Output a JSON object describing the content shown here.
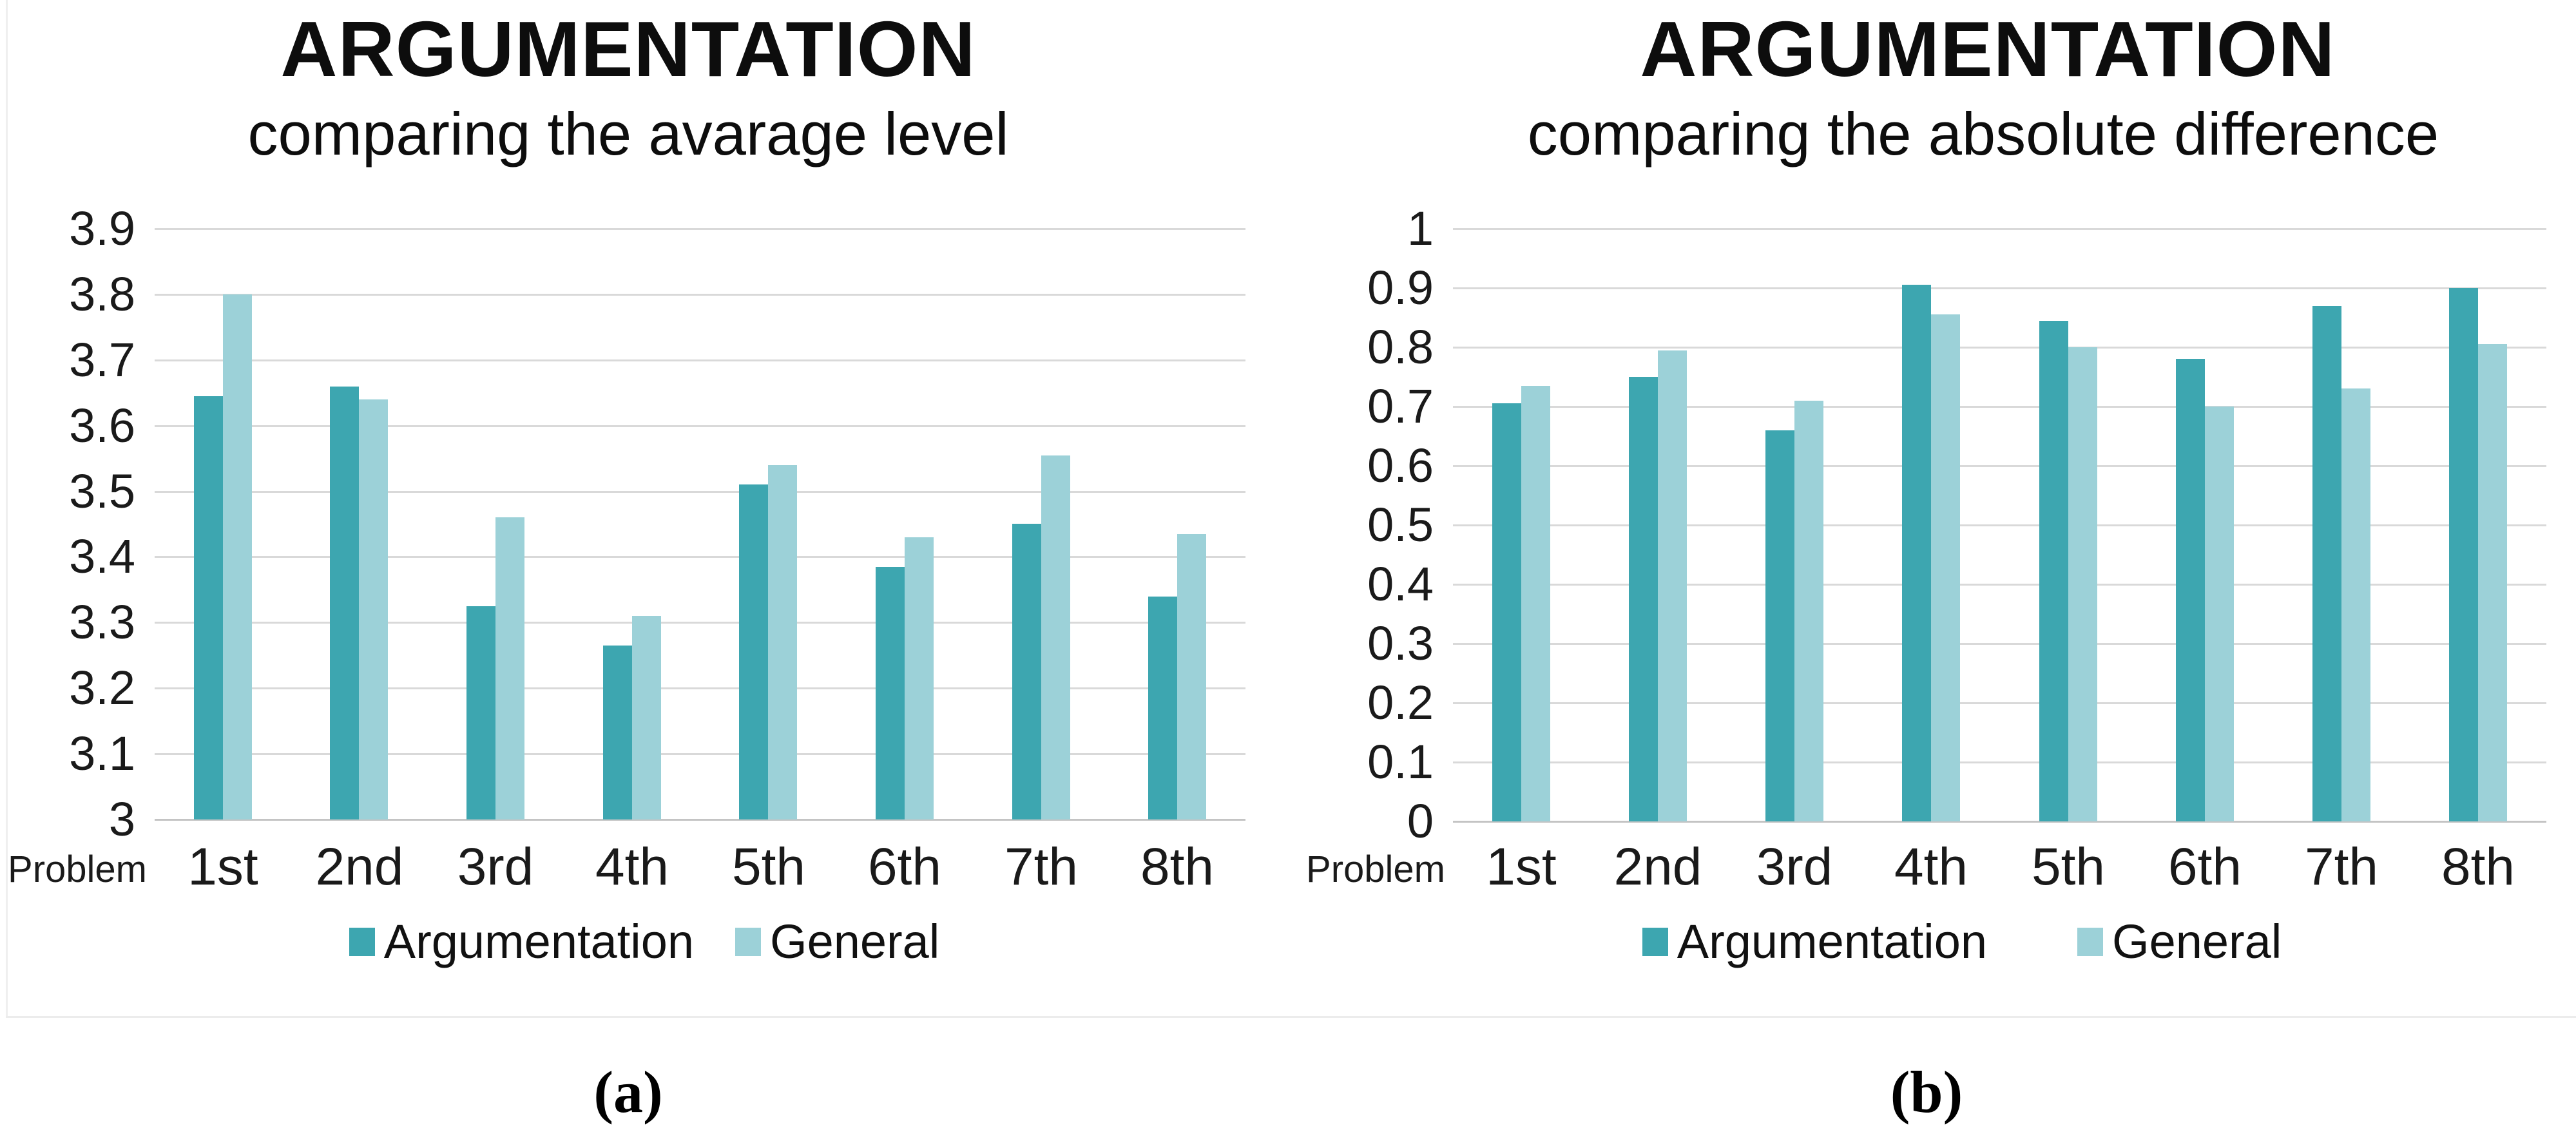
{
  "page": {
    "background": "#ffffff"
  },
  "colors": {
    "argumentation": "#3DA6B0",
    "general": "#9CD1D8",
    "gridline": "#D9D9D9",
    "axis_line": "#C4C4C4",
    "text": "#111111"
  },
  "chart_data": [
    {
      "id": "average-level",
      "type": "bar",
      "title": "ARGUMENTATION",
      "subtitle": "comparing the avarage level",
      "caption": "(a)",
      "xlabel_prefix": "Problem",
      "categories": [
        "1st",
        "2nd",
        "3rd",
        "4th",
        "5th",
        "6th",
        "7th",
        "8th"
      ],
      "series": [
        {
          "name": "Argumentation",
          "color": "#3DA6B0",
          "values": [
            3.645,
            3.66,
            3.325,
            3.265,
            3.51,
            3.385,
            3.45,
            3.34
          ]
        },
        {
          "name": "General",
          "color": "#9CD1D8",
          "values": [
            3.8,
            3.64,
            3.46,
            3.31,
            3.54,
            3.43,
            3.555,
            3.435
          ]
        }
      ],
      "ylim": [
        3,
        3.9
      ],
      "yticks": [
        "3.9",
        "3.8",
        "3.7",
        "3.6",
        "3.5",
        "3.4",
        "3.3",
        "3.2",
        "3.1",
        "3"
      ],
      "ytick_values": [
        3.9,
        3.8,
        3.7,
        3.6,
        3.5,
        3.4,
        3.3,
        3.2,
        3.1,
        3
      ],
      "grid": true,
      "legend_position": "bottom"
    },
    {
      "id": "absolute-difference",
      "type": "bar",
      "title": "ARGUMENTATION",
      "subtitle": "comparing the absolute difference",
      "caption": "(b)",
      "xlabel_prefix": "Problem",
      "categories": [
        "1st",
        "2nd",
        "3rd",
        "4th",
        "5th",
        "6th",
        "7th",
        "8th"
      ],
      "series": [
        {
          "name": "Argumentation",
          "color": "#3DA6B0",
          "values": [
            0.705,
            0.75,
            0.66,
            0.905,
            0.845,
            0.78,
            0.87,
            0.9
          ]
        },
        {
          "name": "General",
          "color": "#9CD1D8",
          "values": [
            0.735,
            0.795,
            0.71,
            0.855,
            0.8,
            0.7,
            0.73,
            0.805
          ]
        }
      ],
      "ylim": [
        0,
        1
      ],
      "yticks": [
        "1",
        "0.9",
        "0.8",
        "0.7",
        "0.6",
        "0.5",
        "0.4",
        "0.3",
        "0.2",
        "0.1",
        "0"
      ],
      "ytick_values": [
        1,
        0.9,
        0.8,
        0.7,
        0.6,
        0.5,
        0.4,
        0.3,
        0.2,
        0.1,
        0
      ],
      "grid": true,
      "legend_position": "bottom"
    }
  ]
}
